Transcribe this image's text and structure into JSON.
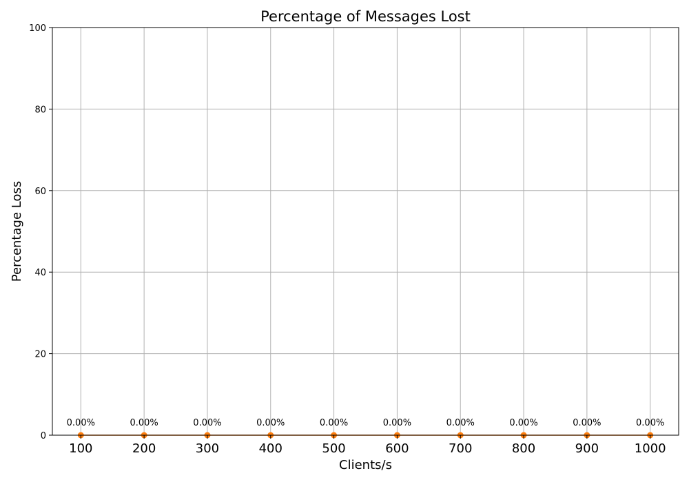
{
  "chart_data": {
    "type": "line",
    "title": "Percentage of Messages Lost",
    "xlabel": "Clients/s",
    "ylabel": "Percentage Loss",
    "x": [
      100,
      200,
      300,
      400,
      500,
      600,
      700,
      800,
      900,
      1000
    ],
    "series": [
      {
        "values": [
          0,
          0,
          0,
          0,
          0,
          0,
          0,
          0,
          0,
          0
        ],
        "data_labels": [
          "0.00%",
          "0.00%",
          "0.00%",
          "0.00%",
          "0.00%",
          "0.00%",
          "0.00%",
          "0.00%",
          "0.00%",
          "0.00%"
        ],
        "color": "#ff7f0e"
      }
    ],
    "xticks": [
      "100",
      "200",
      "300",
      "400",
      "500",
      "600",
      "700",
      "800",
      "900",
      "1000"
    ],
    "yticks": [
      "0",
      "20",
      "40",
      "60",
      "80",
      "100"
    ],
    "xlim": [
      55,
      1045
    ],
    "ylim": [
      0,
      100
    ],
    "grid": true,
    "legend": "none"
  }
}
